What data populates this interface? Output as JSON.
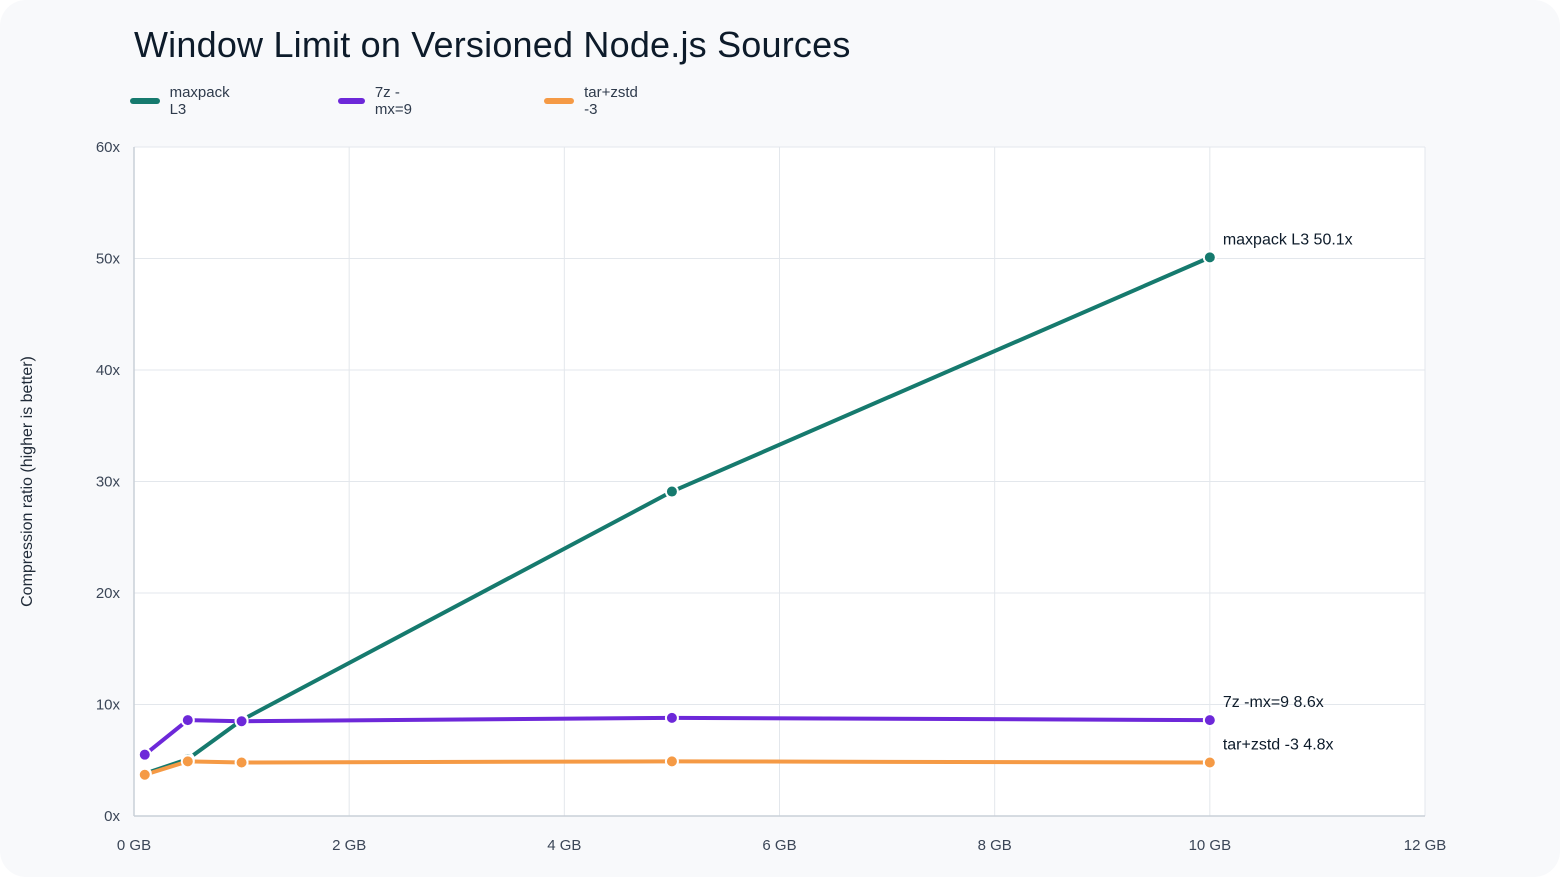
{
  "chart_data": {
    "type": "line",
    "title": "Window Limit on Versioned Node.js Sources",
    "xlabel": "",
    "ylabel": "Compression ratio (higher is better)",
    "xlim": [
      0,
      12
    ],
    "ylim": [
      0,
      60
    ],
    "x_ticks": [
      0,
      2,
      4,
      6,
      8,
      10,
      12
    ],
    "x_tick_labels": [
      "0 GB",
      "2 GB",
      "4 GB",
      "6 GB",
      "8 GB",
      "10 GB",
      "12 GB"
    ],
    "y_ticks": [
      0,
      10,
      20,
      30,
      40,
      50,
      60
    ],
    "y_tick_labels": [
      "0x",
      "10x",
      "20x",
      "30x",
      "40x",
      "50x",
      "60x"
    ],
    "grid": true,
    "legend_position": "top-left",
    "series": [
      {
        "name": "maxpack L3",
        "color": "#167a6e",
        "x": [
          0.1,
          0.5,
          1,
          5,
          10
        ],
        "y": [
          3.8,
          5.1,
          8.6,
          29.1,
          50.1
        ],
        "end_label": "maxpack L3 50.1x"
      },
      {
        "name": "7z -mx=9",
        "color": "#6d28d9",
        "x": [
          0.1,
          0.5,
          1,
          5,
          10
        ],
        "y": [
          5.5,
          8.6,
          8.5,
          8.8,
          8.6
        ],
        "end_label": "7z -mx=9 8.6x"
      },
      {
        "name": "tar+zstd -3",
        "color": "#f59a45",
        "x": [
          0.1,
          0.5,
          1,
          5,
          10
        ],
        "y": [
          3.7,
          4.9,
          4.8,
          4.9,
          4.8
        ],
        "end_label": "tar+zstd -3 4.8x"
      }
    ]
  }
}
